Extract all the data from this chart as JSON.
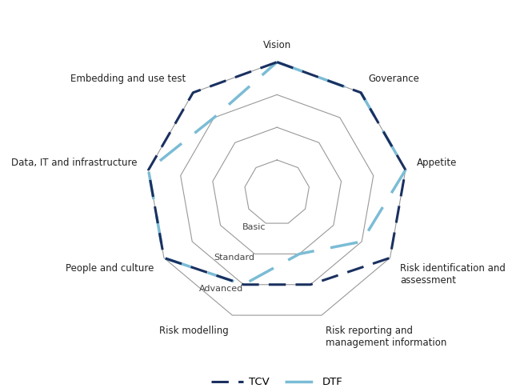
{
  "num_vars": 9,
  "category_labels": [
    "Vision",
    "Goverance",
    "Appetite",
    "Risk identification and\nassessment",
    "Risk reporting and\nmanagement information",
    "Risk modelling",
    "People and culture",
    "Data, IT and infrastructure",
    "Embedding and use test"
  ],
  "levels": [
    1,
    2,
    3,
    4
  ],
  "level_labels": [
    {
      "level": 1,
      "text": "Basic"
    },
    {
      "level": 2,
      "text": "Standard"
    },
    {
      "level": 3,
      "text": "Advanced"
    }
  ],
  "tcv_values": [
    4,
    4,
    4,
    4,
    3,
    3,
    4,
    4,
    4
  ],
  "dtf_values": [
    4,
    4,
    4,
    3,
    2,
    3,
    4,
    4,
    3
  ],
  "tcv_color": "#1a3060",
  "dtf_color": "#7bbcd5",
  "grid_color": "#999999",
  "max_level": 4,
  "legend_labels": [
    "TCV",
    "DTF"
  ],
  "background_color": "#ffffff",
  "label_fontsize": 8.5,
  "level_label_fontsize": 8,
  "figsize": [
    6.5,
    4.9
  ],
  "dpi": 100
}
